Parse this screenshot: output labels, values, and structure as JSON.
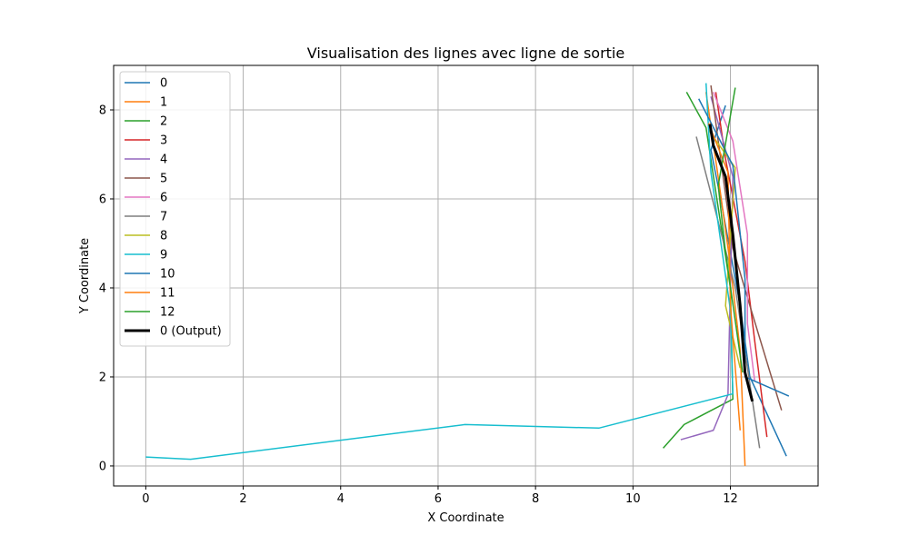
{
  "chart_data": {
    "type": "line",
    "title": "Visualisation des lignes avec ligne de sortie",
    "xlabel": "X Coordinate",
    "ylabel": "Y Coordinate",
    "xlim": [
      -0.66,
      13.8
    ],
    "ylim": [
      -0.45,
      9.0
    ],
    "xticks": [
      0,
      2,
      4,
      6,
      8,
      10,
      12
    ],
    "yticks": [
      0,
      2,
      4,
      6,
      8
    ],
    "xtick_labels": [
      "0",
      "2",
      "4",
      "6",
      "8",
      "10",
      "12"
    ],
    "ytick_labels": [
      "0",
      "2",
      "4",
      "6",
      "8"
    ],
    "grid": true,
    "legend_position": "upper-left",
    "series": [
      {
        "name": "0",
        "color": "#1f77b4",
        "points": [
          [
            11.9,
            8.1
          ],
          [
            11.6,
            7.1
          ],
          [
            11.8,
            6.0
          ],
          [
            12.2,
            3.6
          ],
          [
            12.4,
            2.0
          ],
          [
            13.15,
            0.22
          ]
        ]
      },
      {
        "name": "1",
        "color": "#ff7f0e",
        "points": [
          [
            11.5,
            8.4
          ],
          [
            11.8,
            6.1
          ],
          [
            12.0,
            4.5
          ],
          [
            12.2,
            2.6
          ],
          [
            12.3,
            0.0
          ]
        ]
      },
      {
        "name": "2",
        "color": "#2ca02c",
        "points": [
          [
            11.1,
            8.4
          ],
          [
            11.5,
            7.6
          ],
          [
            12.0,
            4.0
          ],
          [
            12.05,
            1.5
          ],
          [
            11.05,
            0.93
          ],
          [
            10.62,
            0.4
          ]
        ]
      },
      {
        "name": "3",
        "color": "#d62728",
        "points": [
          [
            11.7,
            8.4
          ],
          [
            11.9,
            6.9
          ],
          [
            12.3,
            4.6
          ],
          [
            12.5,
            2.8
          ],
          [
            12.75,
            0.65
          ]
        ]
      },
      {
        "name": "4",
        "color": "#9467bd",
        "points": [
          [
            11.6,
            8.3
          ],
          [
            12.05,
            6.5
          ],
          [
            11.95,
            1.6
          ],
          [
            11.65,
            0.8
          ],
          [
            10.98,
            0.59
          ]
        ]
      },
      {
        "name": "5",
        "color": "#8c564b",
        "points": [
          [
            11.6,
            8.55
          ],
          [
            11.75,
            7.3
          ],
          [
            12.05,
            4.9
          ],
          [
            12.4,
            3.6
          ],
          [
            13.05,
            1.25
          ]
        ]
      },
      {
        "name": "6",
        "color": "#e377c2",
        "points": [
          [
            11.65,
            8.4
          ],
          [
            12.05,
            7.3
          ],
          [
            12.35,
            5.2
          ],
          [
            12.35,
            3.2
          ],
          [
            12.5,
            1.9
          ]
        ]
      },
      {
        "name": "7",
        "color": "#7f7f7f",
        "points": [
          [
            11.3,
            7.4
          ],
          [
            12.1,
            4.0
          ],
          [
            12.6,
            0.4
          ]
        ]
      },
      {
        "name": "8",
        "color": "#bcbd22",
        "points": [
          [
            11.55,
            7.55
          ],
          [
            12.1,
            6.7
          ],
          [
            11.9,
            3.6
          ],
          [
            12.2,
            2.2
          ]
        ]
      },
      {
        "name": "9",
        "color": "#17becf",
        "points": [
          [
            0.0,
            0.2
          ],
          [
            0.92,
            0.15
          ],
          [
            6.55,
            0.93
          ],
          [
            9.3,
            0.85
          ],
          [
            12.05,
            1.62
          ],
          [
            12.0,
            3.5
          ],
          [
            11.6,
            6.6
          ],
          [
            11.5,
            8.6
          ]
        ]
      },
      {
        "name": "10",
        "color": "#1f77b4",
        "points": [
          [
            11.35,
            8.25
          ],
          [
            12.05,
            6.75
          ],
          [
            12.3,
            4.2
          ],
          [
            12.3,
            2.0
          ],
          [
            13.2,
            1.57
          ]
        ]
      },
      {
        "name": "11",
        "color": "#ff7f0e",
        "points": [
          [
            11.55,
            7.7
          ],
          [
            11.95,
            6.6
          ],
          [
            12.0,
            3.6
          ],
          [
            12.2,
            0.8
          ]
        ]
      },
      {
        "name": "12",
        "color": "#2ca02c",
        "points": [
          [
            12.1,
            8.5
          ],
          [
            11.75,
            6.3
          ],
          [
            11.9,
            4.8
          ],
          [
            12.25,
            2.1
          ]
        ]
      },
      {
        "name": "0 (Output)",
        "color": "#000000",
        "width": 3,
        "points": [
          [
            11.58,
            7.68
          ],
          [
            11.65,
            7.2
          ],
          [
            11.9,
            6.5
          ],
          [
            12.05,
            5.2
          ],
          [
            12.2,
            3.6
          ],
          [
            12.3,
            2.1
          ],
          [
            12.45,
            1.45
          ]
        ]
      }
    ]
  }
}
